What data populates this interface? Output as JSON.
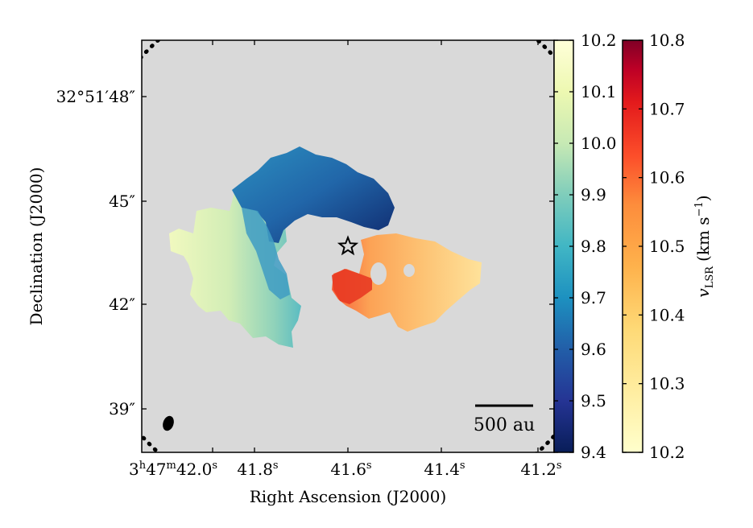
{
  "chart_data": {
    "type": "heatmap",
    "title": "",
    "xlabel": "Right Ascension (J2000)",
    "ylabel": "Declination (J2000)",
    "x_ticks": [
      {
        "label": "3h47m42.0s",
        "value": 42.0
      },
      {
        "label": "41.8s",
        "value": 41.8
      },
      {
        "label": "41.6s",
        "value": 41.6
      },
      {
        "label": "41.4s",
        "value": 41.4
      },
      {
        "label": "41.2s",
        "value": 41.2
      }
    ],
    "y_ticks": [
      {
        "label": "32°51′48″",
        "value": 48
      },
      {
        "label": "45″",
        "value": 45
      },
      {
        "label": "42″",
        "value": 42
      },
      {
        "label": "39″",
        "value": 39
      }
    ],
    "background_color": "#d9d9d9",
    "star_marker": {
      "ra_s": 41.59,
      "dec_arcsec": 43.6
    },
    "scale_bar": {
      "label": "500 au"
    },
    "beam": {
      "shape": "ellipse",
      "color": "#000000"
    },
    "colorbars": [
      {
        "name": "blue-side",
        "cmap": "YlGnBu",
        "range": [
          9.4,
          10.2
        ],
        "ticks": [
          "9.4",
          "9.5",
          "9.6",
          "9.7",
          "9.8",
          "9.9",
          "10.0",
          "10.1",
          "10.2"
        ],
        "label": ""
      },
      {
        "name": "red-side",
        "cmap": "YlOrRd",
        "range": [
          10.2,
          10.8
        ],
        "ticks": [
          "10.2",
          "10.3",
          "10.4",
          "10.5",
          "10.6",
          "10.7",
          "10.8"
        ],
        "label": "v_LSR (km s^-1)"
      }
    ],
    "regions": [
      {
        "name": "blue-shifted arc (north)",
        "velocity_range_kms": [
          9.45,
          9.7
        ]
      },
      {
        "name": "blue-shifted arc (west)",
        "velocity_range_kms": [
          9.8,
          10.1
        ]
      },
      {
        "name": "red-shifted lobe (east)",
        "velocity_range_kms": [
          10.3,
          10.65
        ]
      }
    ]
  },
  "text": {
    "x_tick_prefix": "3h47m42.0s",
    "colorbar2_label_main": "v",
    "colorbar2_label_sub": "LSR",
    "colorbar2_label_units": "(km s",
    "colorbar2_label_exp": "−1",
    "colorbar2_label_close": ")"
  }
}
